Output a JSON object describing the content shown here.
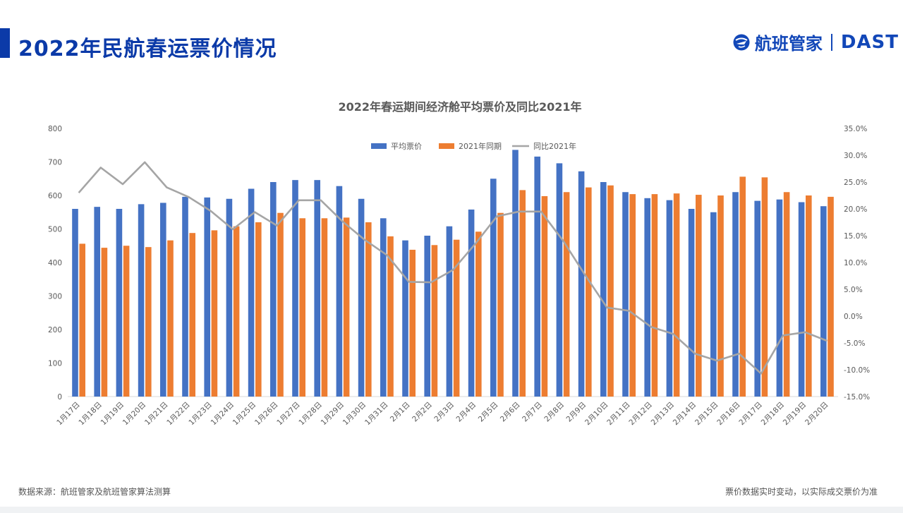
{
  "header": {
    "title": "2022年民航春运票价情况",
    "brand_name": "航班管家",
    "brand_en": "DAST"
  },
  "footer": {
    "source": "数据来源：航班管家及航班管家算法测算",
    "note": "票价数据实时变动，以实际成交票价为准"
  },
  "colors": {
    "accent": "#0b3aa8",
    "series_price": "#4472c4",
    "series_2021": "#ed7d31",
    "series_yoy": "#a5a5a5"
  },
  "chart_data": {
    "type": "bar",
    "title": "2022年春运期间经济舱平均票价及同比2021年",
    "xlabel": "",
    "ylabel": "",
    "ylim": [
      0,
      800
    ],
    "y_ticks": [
      "800",
      "700",
      "600",
      "500",
      "400",
      "300",
      "200",
      "100",
      "0"
    ],
    "y2lim": [
      -15,
      35
    ],
    "y2_ticks": [
      "35.0%",
      "30.0%",
      "25.0%",
      "20.0%",
      "15.0%",
      "10.0%",
      "5.0%",
      "0.0%",
      "-5.0%",
      "-10.0%",
      "-15.0%"
    ],
    "legend_position": "top",
    "categories": [
      "1月17日",
      "1月18日",
      "1月19日",
      "1月20日",
      "1月21日",
      "1月22日",
      "1月23日",
      "1月24日",
      "1月25日",
      "1月26日",
      "1月27日",
      "1月28日",
      "1月29日",
      "1月30日",
      "1月31日",
      "2月1日",
      "2月2日",
      "2月3日",
      "2月4日",
      "2月5日",
      "2月6日",
      "2月7日",
      "2月8日",
      "2月9日",
      "2月10日",
      "2月11日",
      "2月12日",
      "2月13日",
      "2月14日",
      "2月15日",
      "2月16日",
      "2月17日",
      "2月18日",
      "2月19日",
      "2月20日"
    ],
    "series": [
      {
        "name": "平均票价",
        "axis": "left",
        "kind": "bar",
        "values": [
          560,
          566,
          560,
          574,
          578,
          596,
          594,
          590,
          620,
          640,
          646,
          646,
          628,
          590,
          532,
          466,
          480,
          508,
          558,
          650,
          736,
          716,
          696,
          672,
          640,
          610,
          592,
          586,
          560,
          550,
          610,
          584,
          588,
          580,
          568
        ]
      },
      {
        "name": "2021年同期",
        "axis": "left",
        "kind": "bar",
        "values": [
          456,
          444,
          450,
          446,
          466,
          488,
          496,
          508,
          520,
          548,
          532,
          532,
          534,
          520,
          478,
          438,
          452,
          468,
          492,
          548,
          616,
          598,
          610,
          624,
          630,
          604,
          604,
          606,
          602,
          600,
          656,
          654,
          610,
          600,
          596
        ]
      },
      {
        "name": "同比2021年",
        "axis": "right",
        "kind": "line",
        "values": [
          23.0,
          27.7,
          24.6,
          28.7,
          24.0,
          22.2,
          19.6,
          16.2,
          19.4,
          16.9,
          21.6,
          21.6,
          17.6,
          14.2,
          11.4,
          6.4,
          6.3,
          8.6,
          13.4,
          18.6,
          19.5,
          19.5,
          14.1,
          7.7,
          1.6,
          1.0,
          -2.0,
          -3.3,
          -7.0,
          -8.3,
          -7.0,
          -10.7,
          -3.6,
          -3.0,
          -4.6
        ]
      }
    ]
  }
}
